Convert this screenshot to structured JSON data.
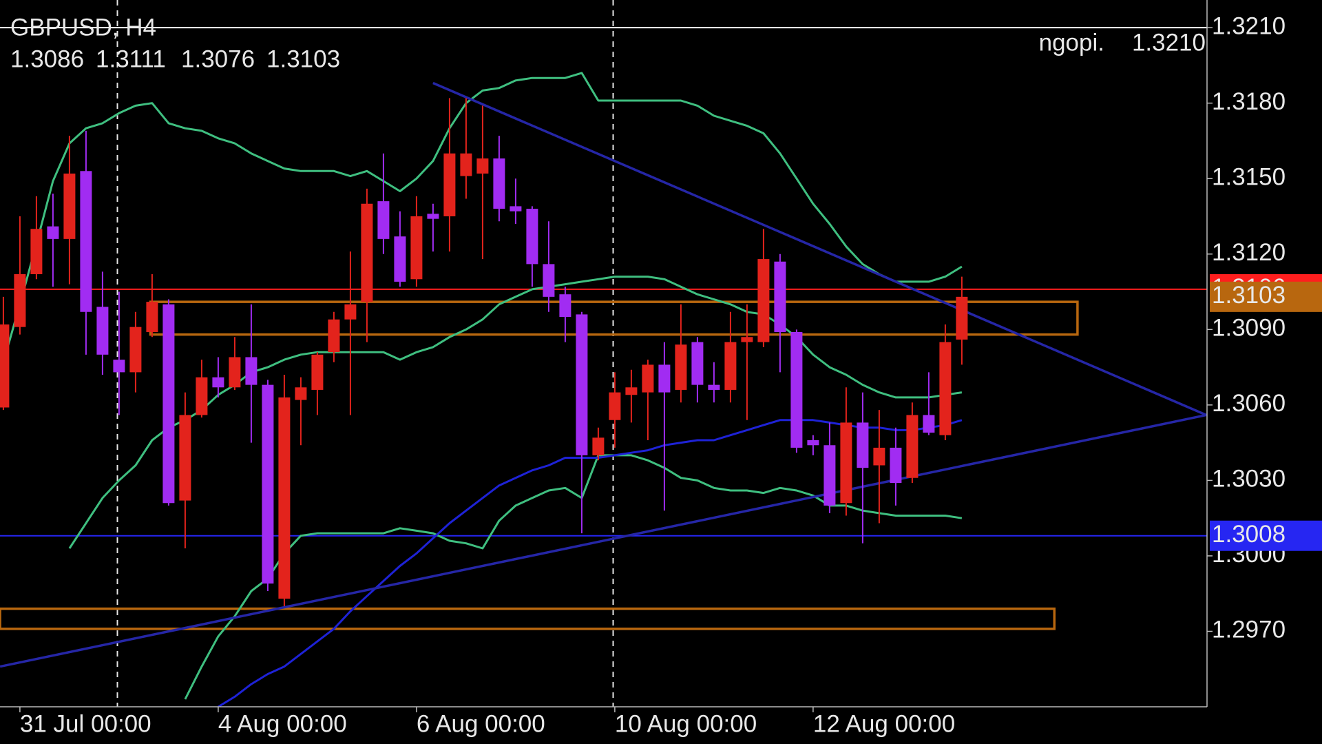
{
  "chart_data": {
    "type": "candlestick",
    "title": "GBPUSD, H4",
    "categories": [
      null,
      "31 Jul 00:00",
      null,
      null,
      null,
      null,
      null,
      null,
      null,
      null,
      null,
      null,
      null,
      "4 Aug 00:00",
      null,
      null,
      null,
      null,
      null,
      null,
      null,
      null,
      null,
      null,
      null,
      "6 Aug 00:00",
      null,
      null,
      null,
      null,
      null,
      null,
      null,
      null,
      null,
      null,
      null,
      "10 Aug 00:00",
      null,
      null,
      null,
      null,
      null,
      null,
      null,
      null,
      null,
      null,
      null,
      "12 Aug 00:00",
      null,
      null,
      null,
      null,
      null,
      null,
      null,
      null,
      null
    ],
    "open": [
      1.3059,
      1.3091,
      1.3112,
      1.3131,
      1.3126,
      1.3153,
      1.3099,
      1.3078,
      1.3073,
      1.3089,
      1.31,
      1.3022,
      1.3056,
      1.3071,
      1.3067,
      1.3079,
      1.3068,
      1.2983,
      1.3062,
      1.3066,
      1.3081,
      1.3094,
      1.3101,
      1.3141,
      1.3127,
      1.311,
      1.3136,
      1.3135,
      1.3151,
      1.3152,
      1.3158,
      1.3139,
      1.3138,
      1.3116,
      1.3104,
      1.3096,
      1.304,
      1.3054,
      1.3064,
      1.3065,
      1.3076,
      1.3066,
      1.3085,
      1.3068,
      1.3066,
      1.3085,
      1.3085,
      1.3117,
      1.3089,
      1.3046,
      1.3044,
      1.3021,
      1.3053,
      1.3036,
      1.3043,
      1.3031,
      1.3056,
      1.3048,
      1.3086
    ],
    "high": [
      1.3103,
      1.3135,
      1.3143,
      1.3144,
      1.3167,
      1.3169,
      1.3113,
      1.3105,
      1.3097,
      1.3112,
      1.3102,
      1.3065,
      1.3078,
      1.3079,
      1.3087,
      1.31,
      1.307,
      1.3072,
      1.3071,
      1.3081,
      1.3097,
      1.3121,
      1.3146,
      1.316,
      1.3137,
      1.3143,
      1.314,
      1.3182,
      1.3182,
      1.3179,
      1.3167,
      1.315,
      1.3139,
      1.3133,
      1.3107,
      1.3097,
      1.3051,
      1.3073,
      1.3074,
      1.3078,
      1.3085,
      1.31,
      1.3087,
      1.3077,
      1.3097,
      1.31,
      1.313,
      1.312,
      1.309,
      1.3048,
      1.3053,
      1.3067,
      1.3065,
      1.3058,
      1.3051,
      1.3061,
      1.3073,
      1.3092,
      1.3111
    ],
    "low": [
      1.3058,
      1.3088,
      1.311,
      1.3107,
      1.3108,
      1.308,
      1.3072,
      1.3056,
      1.3065,
      1.3087,
      1.302,
      1.3003,
      1.3055,
      1.3063,
      1.3066,
      1.3045,
      1.2986,
      1.298,
      1.3044,
      1.3056,
      1.3077,
      1.3056,
      1.3085,
      1.312,
      1.3107,
      1.3107,
      1.3121,
      1.3121,
      1.3142,
      1.3118,
      1.3133,
      1.3132,
      1.3107,
      1.3097,
      1.3085,
      1.3009,
      1.3038,
      1.3043,
      1.3053,
      1.3046,
      1.3018,
      1.3061,
      1.3061,
      1.3061,
      1.3061,
      1.3054,
      1.3083,
      1.3073,
      1.3041,
      1.304,
      1.3017,
      1.3016,
      1.3005,
      1.3013,
      1.302,
      1.3029,
      1.3048,
      1.3046,
      1.3076
    ],
    "close": [
      1.3092,
      1.3112,
      1.313,
      1.3126,
      1.3152,
      1.3097,
      1.308,
      1.3073,
      1.3091,
      1.3101,
      1.3021,
      1.3056,
      1.3071,
      1.3067,
      1.3079,
      1.3068,
      1.2989,
      1.3063,
      1.3067,
      1.308,
      1.3094,
      1.31,
      1.314,
      1.3126,
      1.3109,
      1.3135,
      1.3134,
      1.316,
      1.316,
      1.3158,
      1.3138,
      1.3137,
      1.3116,
      1.3103,
      1.3095,
      1.304,
      1.3047,
      1.3065,
      1.3067,
      1.3076,
      1.3065,
      1.3084,
      1.3068,
      1.3066,
      1.3085,
      1.3087,
      1.3118,
      1.3089,
      1.3043,
      1.3044,
      1.302,
      1.3053,
      1.3035,
      1.3043,
      1.3029,
      1.3056,
      1.3049,
      1.3085,
      1.3103
    ],
    "up_color": "#e3231c",
    "down_color": "#a12cf2",
    "overlays": [
      {
        "color": "#3fbf80",
        "values": [
          1.3077,
          1.31,
          1.3124,
          1.3149,
          1.3164,
          1.317,
          1.3172,
          1.3176,
          1.3179,
          1.318,
          1.3172,
          1.317,
          1.3169,
          1.3166,
          1.3164,
          1.316,
          1.3157,
          1.3154,
          1.3153,
          1.3153,
          1.3153,
          1.3151,
          1.3153,
          1.3149,
          1.3145,
          1.315,
          1.3157,
          1.317,
          1.318,
          1.3185,
          1.3186,
          1.3189,
          1.319,
          1.319,
          1.319,
          1.3192,
          1.3181,
          1.3181,
          1.3181,
          1.3181,
          1.3181,
          1.3181,
          1.3179,
          1.3175,
          1.3173,
          1.3171,
          1.3168,
          1.316,
          1.315,
          1.314,
          1.3132,
          1.3123,
          1.3116,
          1.3112,
          1.3109,
          1.3109,
          1.3109,
          1.3111,
          1.3115
        ]
      },
      {
        "color": "#3fbf80",
        "values": [
          null,
          null,
          null,
          null,
          1.3003,
          1.3013,
          1.3023,
          1.303,
          1.3036,
          1.3046,
          1.3051,
          1.3054,
          1.3058,
          1.3064,
          1.3068,
          1.3073,
          1.3075,
          1.3078,
          1.308,
          1.3081,
          1.3081,
          1.3081,
          1.3081,
          1.3081,
          1.3078,
          1.3081,
          1.3083,
          1.3087,
          1.309,
          1.3094,
          1.31,
          1.3103,
          1.3106,
          1.3107,
          1.3108,
          1.3109,
          1.311,
          1.3111,
          1.3111,
          1.3111,
          1.311,
          1.3107,
          1.3104,
          1.3102,
          1.31,
          1.3097,
          1.3096,
          1.3092,
          1.3087,
          1.308,
          1.3075,
          1.3072,
          1.3068,
          1.3065,
          1.3063,
          1.3063,
          1.3063,
          1.3064,
          1.3065
        ]
      },
      {
        "color": "#3fbf80",
        "values": [
          null,
          null,
          null,
          null,
          null,
          null,
          null,
          null,
          null,
          null,
          null,
          1.2943,
          1.2956,
          1.2968,
          1.2976,
          1.2986,
          1.2991,
          1.3001,
          1.3008,
          1.3009,
          1.3009,
          1.3009,
          1.3009,
          1.3009,
          1.3011,
          1.301,
          1.3009,
          1.3006,
          1.3005,
          1.3003,
          1.3014,
          1.302,
          1.3023,
          1.3026,
          1.3027,
          1.3023,
          1.304,
          1.304,
          1.304,
          1.3038,
          1.3035,
          1.3031,
          1.303,
          1.3027,
          1.3026,
          1.3026,
          1.3025,
          1.3027,
          1.3026,
          1.3024,
          1.302,
          1.302,
          1.3018,
          1.3017,
          1.3016,
          1.3016,
          1.3016,
          1.3016,
          1.3015
        ]
      },
      {
        "color": "#1e22d6",
        "values": [
          null,
          null,
          null,
          null,
          null,
          null,
          null,
          null,
          null,
          null,
          null,
          null,
          null,
          1.294,
          1.2944,
          1.2949,
          1.2953,
          1.2956,
          1.2961,
          1.2966,
          1.2971,
          1.2978,
          1.2984,
          1.299,
          1.2996,
          1.3001,
          1.3007,
          1.3013,
          1.3018,
          1.3023,
          1.3028,
          1.3031,
          1.3034,
          1.3036,
          1.3039,
          1.3039,
          1.3039,
          1.304,
          1.3041,
          1.3042,
          1.3044,
          1.3045,
          1.3046,
          1.3046,
          1.3048,
          1.305,
          1.3052,
          1.3054,
          1.3054,
          1.3054,
          1.3053,
          1.3052,
          1.3051,
          1.3051,
          1.305,
          1.305,
          1.3051,
          1.3052,
          1.3054
        ]
      }
    ],
    "trendlines": [
      {
        "color": "#2526a6",
        "x": [
          26,
          72.8
        ],
        "y": [
          1.3188,
          1.3056
        ]
      },
      {
        "color": "#2526a6",
        "x": [
          -0.2,
          72.8
        ],
        "y": [
          1.2956,
          1.3056
        ]
      }
    ],
    "rectangles": [
      {
        "color": "#b8670f",
        "x": [
          8.9,
          65
        ],
        "y": [
          1.3101,
          1.3088
        ]
      },
      {
        "color": "#b8670f",
        "x": [
          -0.2,
          63.6
        ],
        "y": [
          1.2979,
          1.2971
        ]
      }
    ],
    "vlines": [
      6.9,
      36.9
    ],
    "hlines": [
      {
        "value": 1.321,
        "label": "1.3210",
        "text": "ngopi.",
        "color": "#ffffff"
      },
      {
        "value": 1.3106,
        "color": "#ff1e1e"
      },
      {
        "value": 1.3008,
        "color": "#2626f2"
      }
    ],
    "price_color": "#b8670f",
    "ylim": [
      1.294,
      1.3221
    ],
    "yticks": [
      {
        "value": 1.321,
        "label": "1.3210"
      },
      {
        "value": 1.318,
        "label": "1.3180"
      },
      {
        "value": 1.315,
        "label": "1.3150"
      },
      {
        "value": 1.312,
        "label": "1.3120"
      },
      {
        "value": 1.309,
        "label": "1.3090"
      },
      {
        "value": 1.306,
        "label": "1.3060"
      },
      {
        "value": 1.303,
        "label": "1.3030"
      },
      {
        "value": 1.3,
        "label": "1.3000"
      },
      {
        "value": 1.297,
        "label": "1.2970"
      }
    ]
  }
}
